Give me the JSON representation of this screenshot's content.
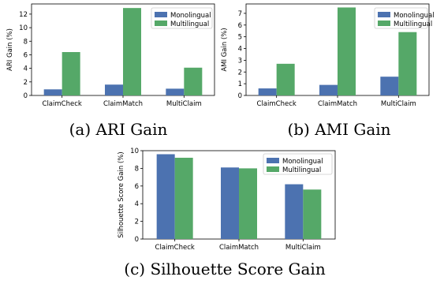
{
  "colors": {
    "monolingual": "#4c72b0",
    "multilingual": "#55a868"
  },
  "chart_data": [
    {
      "type": "bar",
      "caption": "(a) ARI Gain",
      "ylabel": "ARI Gain (%)",
      "categories": [
        "ClaimCheck",
        "ClaimMatch",
        "MultiClaim"
      ],
      "ylim": [
        0,
        13.5
      ],
      "yticks": [
        "0",
        "2",
        "4",
        "6",
        "8",
        "10",
        "12"
      ],
      "legend_position": "top-right",
      "series": [
        {
          "name": "Monolingual",
          "values": [
            0.9,
            1.6,
            1.0
          ]
        },
        {
          "name": "Multilingual",
          "values": [
            6.4,
            12.9,
            4.1
          ]
        }
      ]
    },
    {
      "type": "bar",
      "caption": "(b) AMI Gain",
      "ylabel": "AMI Gain (%)",
      "categories": [
        "ClaimCheck",
        "ClaimMatch",
        "MultiClaim"
      ],
      "ylim": [
        0,
        7.8
      ],
      "yticks": [
        "0",
        "1",
        "2",
        "3",
        "4",
        "5",
        "6",
        "7"
      ],
      "legend_position": "top-right",
      "series": [
        {
          "name": "Monolingual",
          "values": [
            0.6,
            0.9,
            1.6
          ]
        },
        {
          "name": "Multilingual",
          "values": [
            2.7,
            7.5,
            5.4
          ]
        }
      ]
    },
    {
      "type": "bar",
      "caption": "(c) Silhouette Score Gain",
      "ylabel": "Silhouette Score Gain (%)",
      "categories": [
        "ClaimCheck",
        "ClaimMatch",
        "MultiClaim"
      ],
      "ylim": [
        0,
        10
      ],
      "yticks": [
        "0",
        "2",
        "4",
        "6",
        "8",
        "10"
      ],
      "legend_position": "top-right",
      "series": [
        {
          "name": "Monolingual",
          "values": [
            9.6,
            8.1,
            6.2
          ]
        },
        {
          "name": "Multilingual",
          "values": [
            9.2,
            8.0,
            5.6
          ]
        }
      ]
    }
  ]
}
